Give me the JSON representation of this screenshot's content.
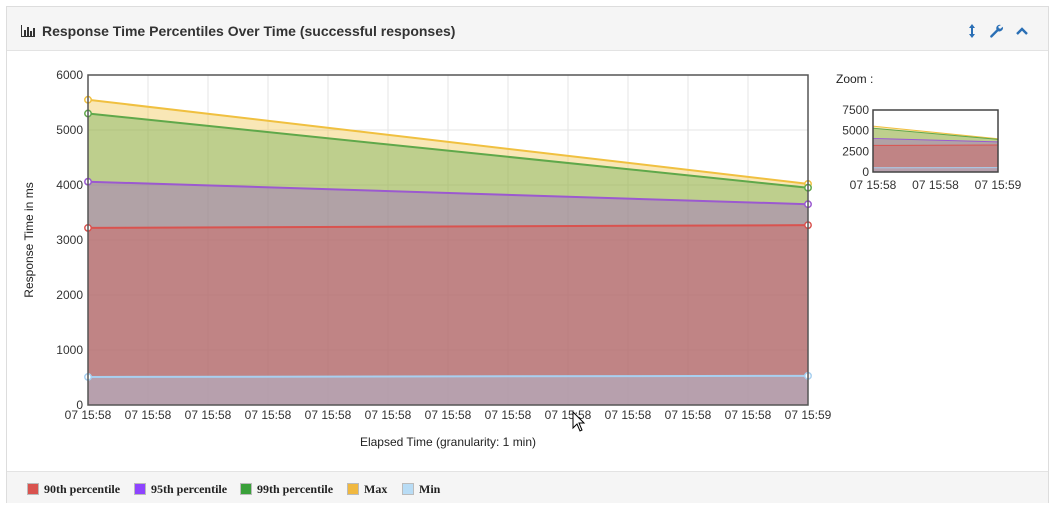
{
  "panel": {
    "title": "Response Time Percentiles Over Time (successful responses)"
  },
  "header_icons": [
    "chart-bar-icon",
    "resize-vertical-icon",
    "wrench-icon",
    "chevron-up-icon"
  ],
  "chart_data": {
    "type": "area",
    "title": "",
    "xlabel": "Elapsed Time (granularity: 1 min)",
    "ylabel": "Response Time in ms",
    "ylim": [
      0,
      6000
    ],
    "yticks": [
      0,
      1000,
      2000,
      3000,
      4000,
      5000,
      6000
    ],
    "x": [
      "07 15:58",
      "07 15:59"
    ],
    "xtick_labels": [
      "07 15:58",
      "07 15:58",
      "07 15:58",
      "07 15:58",
      "07 15:58",
      "07 15:58",
      "07 15:58",
      "07 15:58",
      "07 15:58",
      "07 15:58",
      "07 15:58",
      "07 15:58",
      "07 15:59"
    ],
    "grid": true,
    "series": [
      {
        "name": "Max",
        "values": [
          5550,
          4020
        ],
        "color": "#f0c040"
      },
      {
        "name": "99th percentile",
        "values": [
          5300,
          3950
        ],
        "color": "#5fa84a"
      },
      {
        "name": "95th percentile",
        "values": [
          4060,
          3650
        ],
        "color": "#9b59d0"
      },
      {
        "name": "90th percentile",
        "values": [
          3220,
          3270
        ],
        "color": "#d9534f"
      },
      {
        "name": "Min",
        "values": [
          510,
          530
        ],
        "color": "#a8d0f0"
      }
    ],
    "zoom": {
      "label": "Zoom :",
      "ylim": [
        0,
        7500
      ],
      "yticks": [
        0,
        2500,
        5000,
        7500
      ],
      "xtick_labels": [
        "07 15:58",
        "07 15:58",
        "07 15:59"
      ]
    }
  },
  "legend": [
    {
      "label": "90th percentile",
      "color": "#d9534f"
    },
    {
      "label": "95th percentile",
      "color": "#8e44ff"
    },
    {
      "label": "99th percentile",
      "color": "#3aa03a"
    },
    {
      "label": "Max",
      "color": "#f0b840"
    },
    {
      "label": "Min",
      "color": "#b8dcf5"
    }
  ]
}
